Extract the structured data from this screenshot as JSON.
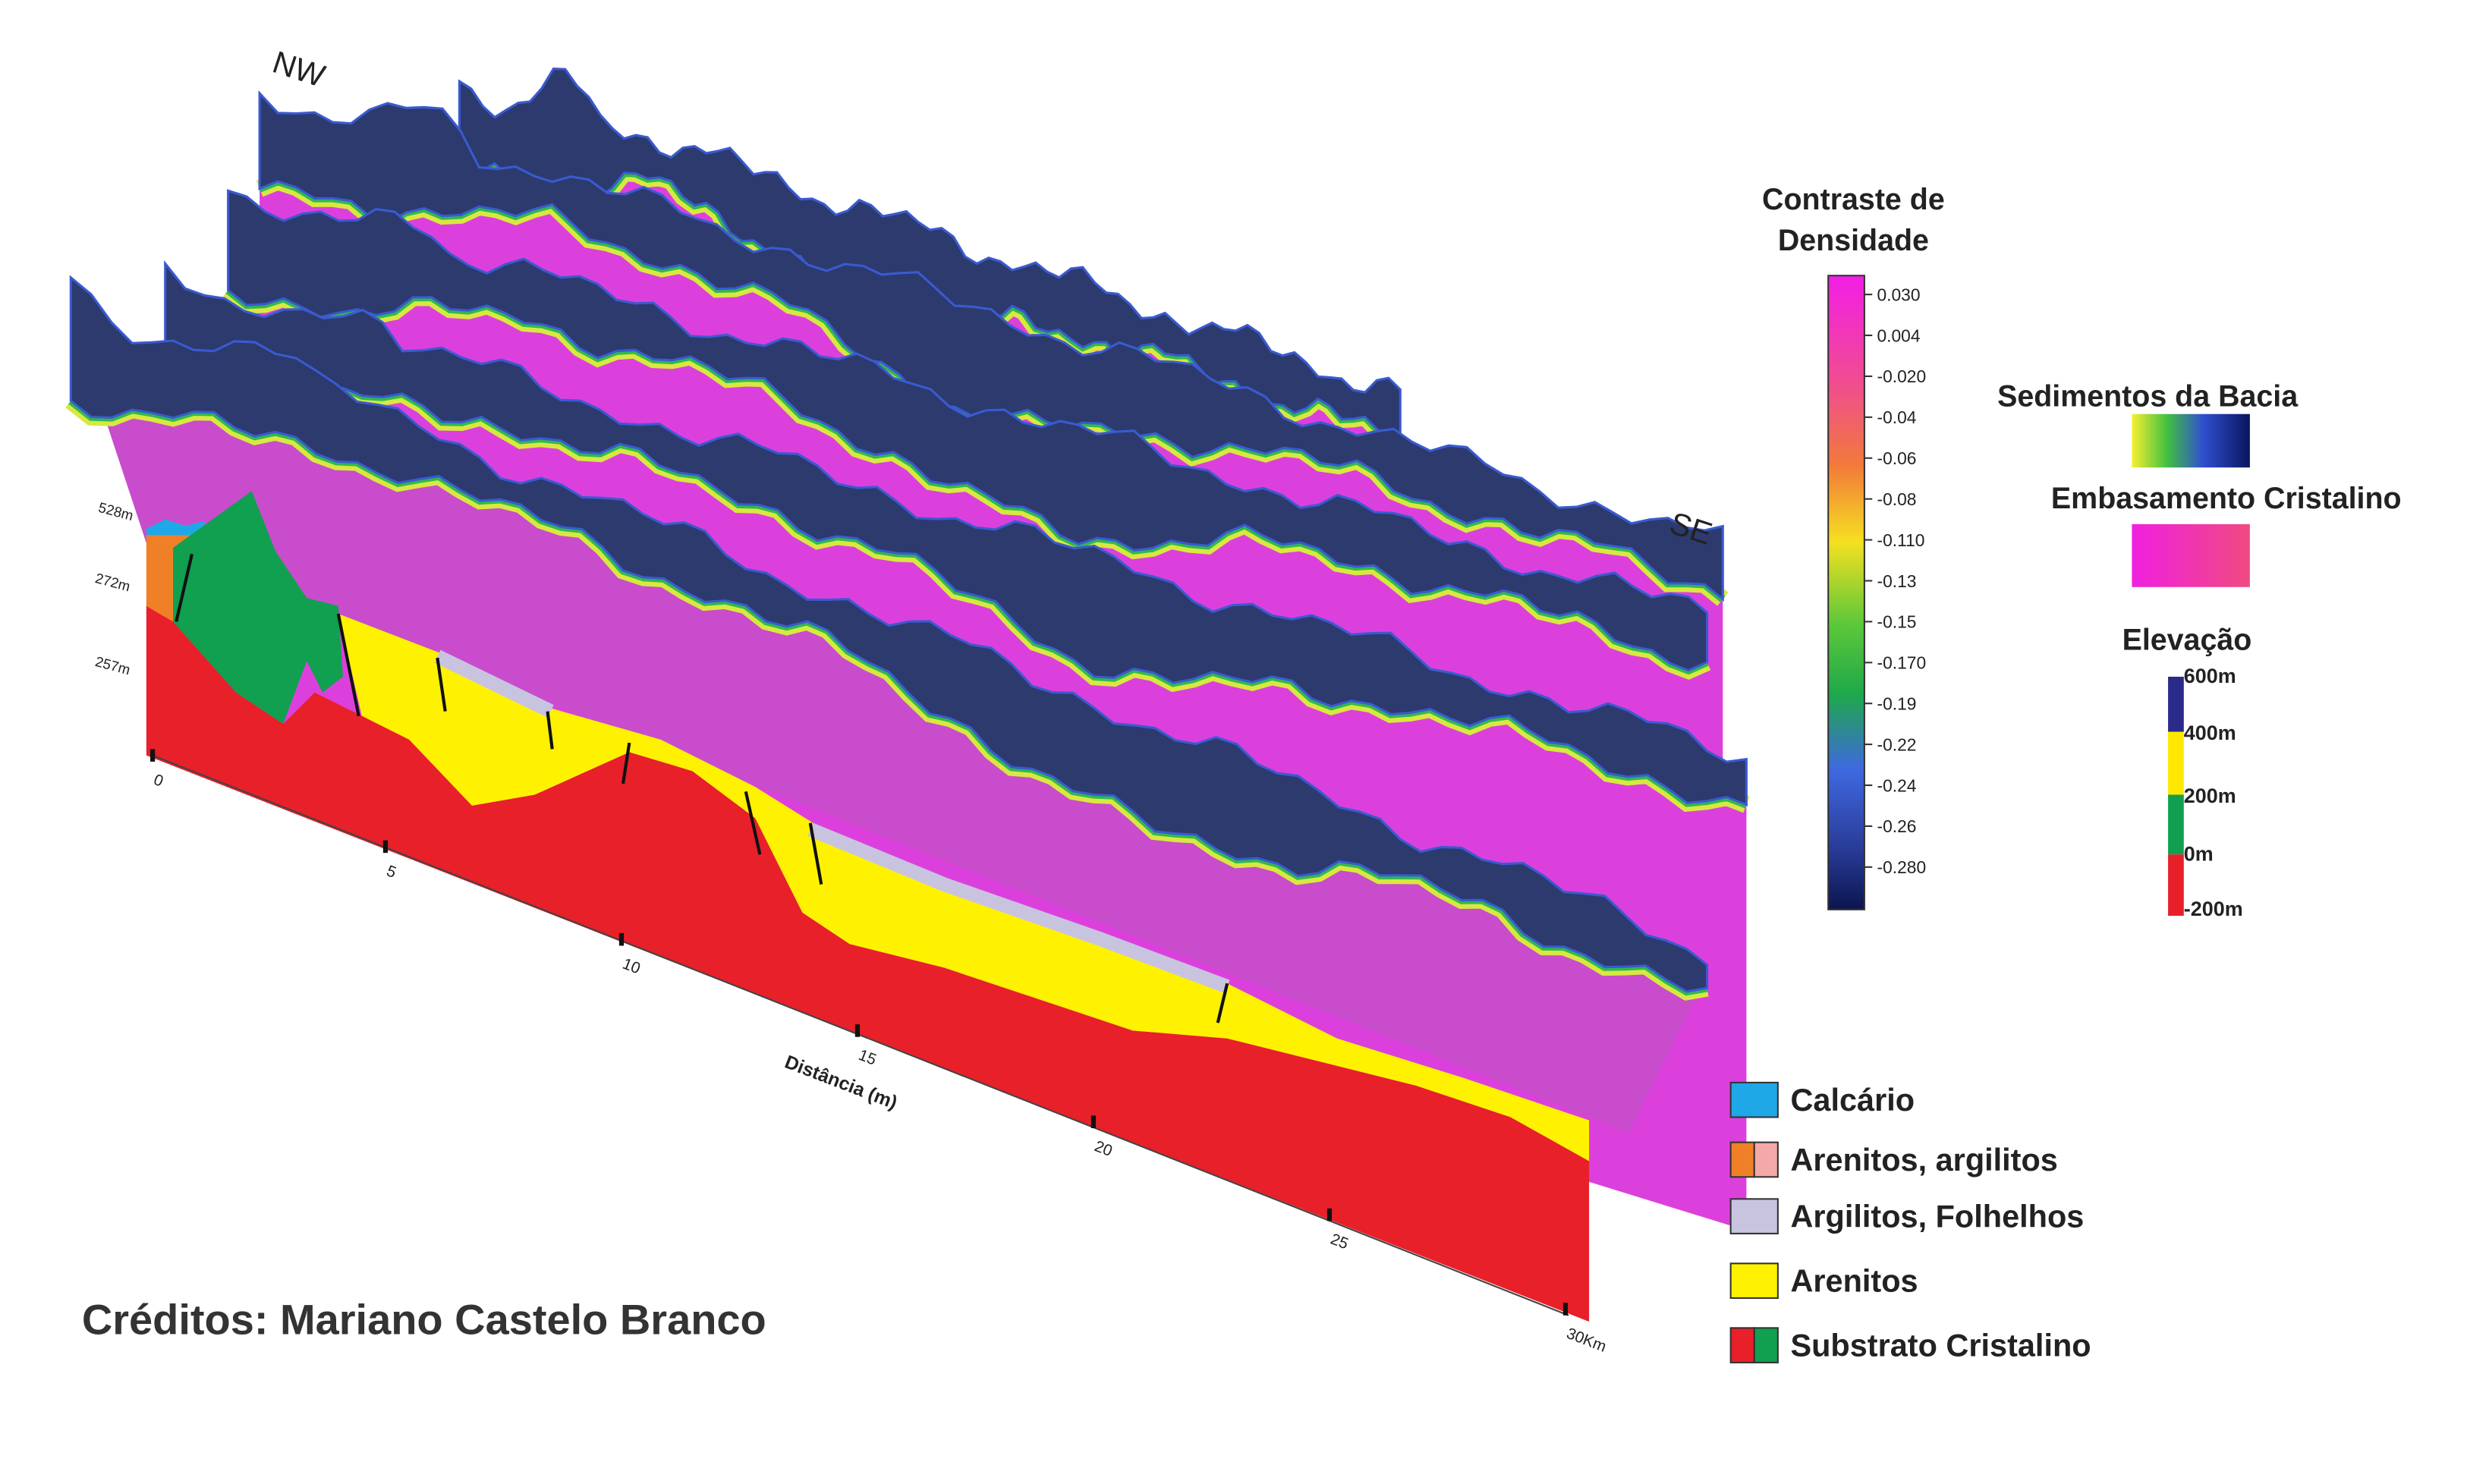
{
  "labels": {
    "nw": "NW",
    "se": "SE"
  },
  "density_legend": {
    "title_lines": [
      "Contraste de",
      "Densidade"
    ],
    "ticks": [
      "0.030",
      "0.004",
      "-0.020",
      "-0.04",
      "-0.06",
      "-0.08",
      "-0.110",
      "-0.13",
      "-0.15",
      "-0.170",
      "-0.19",
      "-0.22",
      "-0.24",
      "-0.26",
      "-0.280"
    ]
  },
  "unit_legend": {
    "sediments": "Sedimentos da Bacia",
    "basement": "Embasamento Cristalino"
  },
  "elevation_legend": {
    "title": "Elevação",
    "ticks": [
      "600m",
      "400m",
      "200m",
      "0m",
      "-200m"
    ]
  },
  "section": {
    "elevation_labels": [
      "528m",
      "272m",
      "257m"
    ],
    "distance_ticks": [
      "0",
      "5",
      "10",
      "15",
      "20",
      "25",
      "30Km"
    ],
    "distance_label": "Distância (m)"
  },
  "lithology_legend": [
    "Calcário",
    "Arenitos, argilitos",
    "Argilitos, Folhelhos",
    "Arenitos",
    "Substrato Cristalino"
  ],
  "credits": "Créditos: Mariano Castelo Branco"
}
